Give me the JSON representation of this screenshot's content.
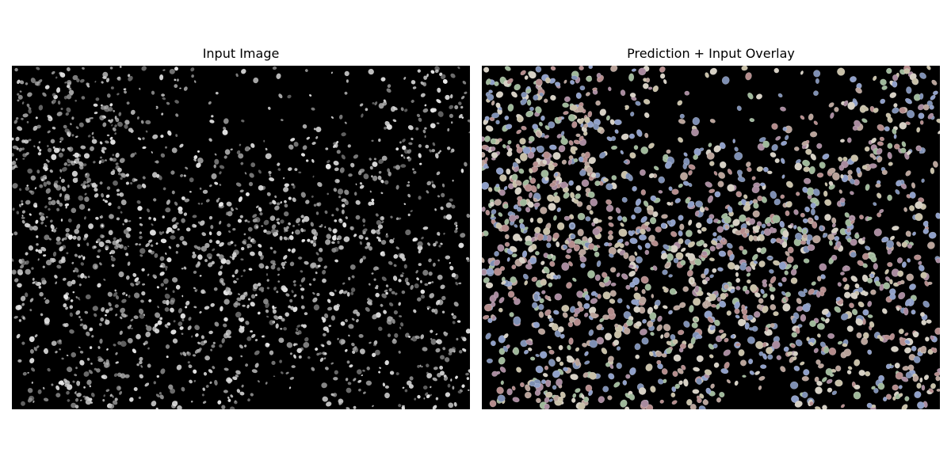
{
  "figure": {
    "left_title": "Input Image",
    "right_title": "Prediction + Input Overlay"
  },
  "images": {
    "left": {
      "content": "grayscale fluorescence microscopy of cell nuclei",
      "background": "#000000",
      "nuclei_color": "#d8d8d8"
    },
    "right": {
      "content": "instance segmentation prediction overlaid on input",
      "background": "#000000",
      "instance_palette": [
        "#b9a39a",
        "#8f9fc8",
        "#a88a9e",
        "#9fb89a",
        "#c8c0a8",
        "#7e8fb3",
        "#b48c8c",
        "#d6d0c4"
      ]
    }
  }
}
